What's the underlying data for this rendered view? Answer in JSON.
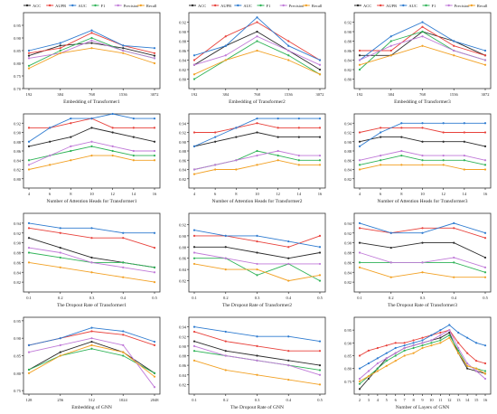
{
  "colors": {
    "ACC": "#2b2b2b",
    "AUPR": "#e8423c",
    "AUC": "#2e7bd0",
    "F1": "#2fb357",
    "Precision": "#c07ad8",
    "Recall": "#f2a124"
  },
  "chart_data": [
    {
      "type": "line",
      "legend": [
        "ACC",
        "AUPR",
        "AUC",
        "F1",
        "Precision",
        "Recall"
      ],
      "legend_position": "top",
      "categories": [
        "192",
        "384",
        "768",
        "1536",
        "3072"
      ],
      "xlabel": "Embedding of Transformer1",
      "ylabel": "",
      "ylim": [
        0.7,
        1.0
      ],
      "yticks": [
        "0.70",
        "0.75",
        "0.80",
        "0.85",
        "0.90",
        "0.95"
      ],
      "series": [
        {
          "name": "ACC",
          "values": [
            0.83,
            0.87,
            0.88,
            0.86,
            0.83
          ]
        },
        {
          "name": "AUPR",
          "values": [
            0.84,
            0.86,
            0.92,
            0.87,
            0.84
          ]
        },
        {
          "name": "AUC",
          "values": [
            0.85,
            0.88,
            0.93,
            0.87,
            0.86
          ]
        },
        {
          "name": "F1",
          "values": [
            0.79,
            0.85,
            0.9,
            0.85,
            0.82
          ]
        },
        {
          "name": "Precision",
          "values": [
            0.82,
            0.84,
            0.89,
            0.85,
            0.82
          ]
        },
        {
          "name": "Recall",
          "values": [
            0.78,
            0.84,
            0.86,
            0.84,
            0.8
          ]
        }
      ]
    },
    {
      "type": "line",
      "legend": [
        "ACC",
        "AUPR",
        "AUC",
        "F1",
        "Precision",
        "Recall"
      ],
      "legend_position": "top",
      "categories": [
        "192",
        "384",
        "768",
        "1536",
        "3072"
      ],
      "xlabel": "Embedding of Transformer2",
      "ylabel": "",
      "ylim": [
        0.78,
        0.94
      ],
      "yticks": [
        "0.80",
        "0.82",
        "0.84",
        "0.86",
        "0.88",
        "0.90",
        "0.92"
      ],
      "series": [
        {
          "name": "ACC",
          "values": [
            0.83,
            0.87,
            0.9,
            0.86,
            0.82
          ]
        },
        {
          "name": "AUPR",
          "values": [
            0.84,
            0.89,
            0.92,
            0.88,
            0.84
          ]
        },
        {
          "name": "AUC",
          "values": [
            0.85,
            0.87,
            0.93,
            0.87,
            0.84
          ]
        },
        {
          "name": "F1",
          "values": [
            0.8,
            0.84,
            0.88,
            0.85,
            0.81
          ]
        },
        {
          "name": "Precision",
          "values": [
            0.83,
            0.85,
            0.89,
            0.86,
            0.83
          ]
        },
        {
          "name": "Recall",
          "values": [
            0.81,
            0.84,
            0.86,
            0.84,
            0.81
          ]
        }
      ]
    },
    {
      "type": "line",
      "legend": [
        "ACC",
        "AUPR",
        "AUC",
        "F1",
        "Precision",
        "Recall"
      ],
      "legend_position": "top",
      "categories": [
        "192",
        "384",
        "768",
        "1536",
        "3072"
      ],
      "xlabel": "Embedding of Transformer3",
      "ylabel": "",
      "ylim": [
        0.78,
        0.94
      ],
      "yticks": [
        "0.80",
        "0.82",
        "0.84",
        "0.86",
        "0.88",
        "0.90",
        "0.92"
      ],
      "series": [
        {
          "name": "ACC",
          "values": [
            0.85,
            0.85,
            0.9,
            0.88,
            0.85
          ]
        },
        {
          "name": "AUPR",
          "values": [
            0.86,
            0.86,
            0.91,
            0.87,
            0.85
          ]
        },
        {
          "name": "AUC",
          "values": [
            0.84,
            0.89,
            0.92,
            0.88,
            0.86
          ]
        },
        {
          "name": "F1",
          "values": [
            0.82,
            0.88,
            0.9,
            0.86,
            0.84
          ]
        },
        {
          "name": "Precision",
          "values": [
            0.84,
            0.87,
            0.89,
            0.86,
            0.84
          ]
        },
        {
          "name": "Recall",
          "values": [
            0.83,
            0.85,
            0.87,
            0.85,
            0.83
          ]
        }
      ]
    },
    {
      "type": "line",
      "categories": [
        "4",
        "6",
        "8",
        "10",
        "12",
        "14",
        "16"
      ],
      "xlabel": "Number of Attention Heads for Transformer1",
      "ylabel": "",
      "ylim": [
        0.78,
        0.94
      ],
      "yticks": [
        "0.80",
        "0.82",
        "0.84",
        "0.86",
        "0.88",
        "0.90",
        "0.92"
      ],
      "series": [
        {
          "name": "ACC",
          "values": [
            0.87,
            0.88,
            0.89,
            0.91,
            0.9,
            0.89,
            0.88
          ]
        },
        {
          "name": "AUPR",
          "values": [
            0.91,
            0.91,
            0.92,
            0.93,
            0.91,
            0.91,
            0.91
          ]
        },
        {
          "name": "AUC",
          "values": [
            0.88,
            0.91,
            0.93,
            0.93,
            0.94,
            0.93,
            0.93
          ]
        },
        {
          "name": "F1",
          "values": [
            0.84,
            0.85,
            0.86,
            0.87,
            0.86,
            0.85,
            0.85
          ]
        },
        {
          "name": "Precision",
          "values": [
            0.83,
            0.85,
            0.87,
            0.88,
            0.87,
            0.86,
            0.86
          ]
        },
        {
          "name": "Recall",
          "values": [
            0.82,
            0.83,
            0.84,
            0.85,
            0.85,
            0.84,
            0.84
          ]
        }
      ]
    },
    {
      "type": "line",
      "categories": [
        "4",
        "6",
        "8",
        "10",
        "12",
        "14",
        "16"
      ],
      "xlabel": "Number of Attention Heads for Transformer2",
      "ylabel": "",
      "ylim": [
        0.8,
        0.96
      ],
      "yticks": [
        "0.82",
        "0.84",
        "0.86",
        "0.88",
        "0.90",
        "0.92",
        "0.94"
      ],
      "series": [
        {
          "name": "ACC",
          "values": [
            0.89,
            0.9,
            0.91,
            0.92,
            0.91,
            0.91,
            0.91
          ]
        },
        {
          "name": "AUPR",
          "values": [
            0.92,
            0.92,
            0.93,
            0.94,
            0.93,
            0.93,
            0.93
          ]
        },
        {
          "name": "AUC",
          "values": [
            0.89,
            0.91,
            0.93,
            0.95,
            0.95,
            0.95,
            0.95
          ]
        },
        {
          "name": "F1",
          "values": [
            0.84,
            0.85,
            0.86,
            0.88,
            0.87,
            0.86,
            0.86
          ]
        },
        {
          "name": "Precision",
          "values": [
            0.84,
            0.85,
            0.86,
            0.87,
            0.88,
            0.87,
            0.87
          ]
        },
        {
          "name": "Recall",
          "values": [
            0.83,
            0.84,
            0.84,
            0.85,
            0.86,
            0.85,
            0.85
          ]
        }
      ]
    },
    {
      "type": "line",
      "categories": [
        "4",
        "6",
        "8",
        "10",
        "12",
        "14",
        "16"
      ],
      "xlabel": "Number of Attention Heads for Transformer3",
      "ylabel": "",
      "ylim": [
        0.8,
        0.96
      ],
      "yticks": [
        "0.82",
        "0.84",
        "0.86",
        "0.88",
        "0.90",
        "0.92",
        "0.94"
      ],
      "series": [
        {
          "name": "ACC",
          "values": [
            0.9,
            0.91,
            0.91,
            0.9,
            0.9,
            0.9,
            0.89
          ]
        },
        {
          "name": "AUPR",
          "values": [
            0.92,
            0.93,
            0.93,
            0.93,
            0.92,
            0.92,
            0.92
          ]
        },
        {
          "name": "AUC",
          "values": [
            0.89,
            0.92,
            0.94,
            0.94,
            0.94,
            0.94,
            0.94
          ]
        },
        {
          "name": "F1",
          "values": [
            0.85,
            0.86,
            0.87,
            0.86,
            0.86,
            0.86,
            0.85
          ]
        },
        {
          "name": "Precision",
          "values": [
            0.86,
            0.87,
            0.88,
            0.87,
            0.87,
            0.87,
            0.86
          ]
        },
        {
          "name": "Recall",
          "values": [
            0.84,
            0.85,
            0.85,
            0.85,
            0.85,
            0.84,
            0.84
          ]
        }
      ]
    },
    {
      "type": "line",
      "categories": [
        "0.1",
        "0.2",
        "0.3",
        "0.4",
        "0.5"
      ],
      "xlabel": "The Dropout Rate of Transformer1",
      "ylabel": "",
      "ylim": [
        0.8,
        0.96
      ],
      "yticks": [
        "0.82",
        "0.84",
        "0.86",
        "0.88",
        "0.90",
        "0.92",
        "0.94"
      ],
      "series": [
        {
          "name": "ACC",
          "values": [
            0.91,
            0.89,
            0.87,
            0.86,
            0.85
          ]
        },
        {
          "name": "AUPR",
          "values": [
            0.93,
            0.92,
            0.91,
            0.91,
            0.89
          ]
        },
        {
          "name": "AUC",
          "values": [
            0.94,
            0.93,
            0.93,
            0.92,
            0.92
          ]
        },
        {
          "name": "F1",
          "values": [
            0.88,
            0.87,
            0.86,
            0.86,
            0.85
          ]
        },
        {
          "name": "Precision",
          "values": [
            0.89,
            0.88,
            0.86,
            0.85,
            0.84
          ]
        },
        {
          "name": "Recall",
          "values": [
            0.86,
            0.85,
            0.84,
            0.83,
            0.82
          ]
        }
      ]
    },
    {
      "type": "line",
      "categories": [
        "0.1",
        "0.2",
        "0.3",
        "0.4",
        "0.5"
      ],
      "xlabel": "The Dropout Rate of Transformer2",
      "ylabel": "",
      "ylim": [
        0.8,
        0.94
      ],
      "yticks": [
        "0.82",
        "0.84",
        "0.86",
        "0.88",
        "0.90",
        "0.92"
      ],
      "series": [
        {
          "name": "ACC",
          "values": [
            0.88,
            0.88,
            0.87,
            0.86,
            0.87
          ]
        },
        {
          "name": "AUPR",
          "values": [
            0.9,
            0.9,
            0.89,
            0.88,
            0.9
          ]
        },
        {
          "name": "AUC",
          "values": [
            0.91,
            0.9,
            0.9,
            0.89,
            0.88
          ]
        },
        {
          "name": "F1",
          "values": [
            0.86,
            0.86,
            0.83,
            0.85,
            0.82
          ]
        },
        {
          "name": "Precision",
          "values": [
            0.87,
            0.86,
            0.85,
            0.85,
            0.85
          ]
        },
        {
          "name": "Recall",
          "values": [
            0.85,
            0.84,
            0.84,
            0.82,
            0.83
          ]
        }
      ]
    },
    {
      "type": "line",
      "categories": [
        "0.1",
        "0.2",
        "0.3",
        "0.4",
        "0.5"
      ],
      "xlabel": "The Dropout Rate of Transformer3",
      "ylabel": "",
      "ylim": [
        0.8,
        0.96
      ],
      "yticks": [
        "0.82",
        "0.84",
        "0.86",
        "0.88",
        "0.90",
        "0.92",
        "0.94"
      ],
      "series": [
        {
          "name": "ACC",
          "values": [
            0.9,
            0.89,
            0.9,
            0.9,
            0.87
          ]
        },
        {
          "name": "AUPR",
          "values": [
            0.93,
            0.92,
            0.93,
            0.93,
            0.91
          ]
        },
        {
          "name": "AUC",
          "values": [
            0.94,
            0.92,
            0.92,
            0.94,
            0.92
          ]
        },
        {
          "name": "F1",
          "values": [
            0.86,
            0.86,
            0.86,
            0.86,
            0.84
          ]
        },
        {
          "name": "Precision",
          "values": [
            0.88,
            0.86,
            0.86,
            0.87,
            0.85
          ]
        },
        {
          "name": "Recall",
          "values": [
            0.85,
            0.83,
            0.84,
            0.83,
            0.83
          ]
        }
      ]
    },
    {
      "type": "line",
      "categories": [
        "128",
        "256",
        "512",
        "1024",
        "2048"
      ],
      "xlabel": "Embedding of GNN",
      "ylabel": "",
      "ylim": [
        0.74,
        0.96
      ],
      "yticks": [
        "0.75",
        "0.80",
        "0.85",
        "0.90",
        "0.95"
      ],
      "series": [
        {
          "name": "ACC",
          "values": [
            0.81,
            0.86,
            0.89,
            0.86,
            0.8
          ]
        },
        {
          "name": "AUPR",
          "values": [
            0.88,
            0.9,
            0.92,
            0.91,
            0.88
          ]
        },
        {
          "name": "AUC",
          "values": [
            0.88,
            0.9,
            0.93,
            0.92,
            0.89
          ]
        },
        {
          "name": "F1",
          "values": [
            0.81,
            0.85,
            0.87,
            0.85,
            0.8
          ]
        },
        {
          "name": "Precision",
          "values": [
            0.86,
            0.88,
            0.9,
            0.88,
            0.76
          ]
        },
        {
          "name": "Recall",
          "values": [
            0.8,
            0.85,
            0.88,
            0.86,
            0.79
          ]
        }
      ]
    },
    {
      "type": "line",
      "categories": [
        "0.1",
        "0.2",
        "0.3",
        "0.4",
        "0.5"
      ],
      "xlabel": "The Dropout Rate of GNN",
      "ylabel": "",
      "ylim": [
        0.8,
        0.96
      ],
      "yticks": [
        "0.82",
        "0.84",
        "0.86",
        "0.88",
        "0.90",
        "0.92",
        "0.94"
      ],
      "series": [
        {
          "name": "ACC",
          "values": [
            0.91,
            0.89,
            0.88,
            0.87,
            0.86
          ]
        },
        {
          "name": "AUPR",
          "values": [
            0.93,
            0.91,
            0.9,
            0.89,
            0.89
          ]
        },
        {
          "name": "AUC",
          "values": [
            0.94,
            0.93,
            0.92,
            0.92,
            0.91
          ]
        },
        {
          "name": "F1",
          "values": [
            0.89,
            0.88,
            0.87,
            0.86,
            0.85
          ]
        },
        {
          "name": "Precision",
          "values": [
            0.9,
            0.88,
            0.87,
            0.86,
            0.84
          ]
        },
        {
          "name": "Recall",
          "values": [
            0.87,
            0.85,
            0.84,
            0.83,
            0.82
          ]
        }
      ]
    },
    {
      "type": "line",
      "categories": [
        "2",
        "3",
        "4",
        "5",
        "6",
        "7",
        "8",
        "9",
        "10",
        "11",
        "12",
        "13",
        "14",
        "15",
        "16"
      ],
      "xlabel": "Number of Layers of GNN",
      "ylabel": "",
      "ylim": [
        0.7,
        1.0
      ],
      "yticks": [
        "0.75",
        "0.80",
        "0.85",
        "0.90",
        "0.95"
      ],
      "series": [
        {
          "name": "ACC",
          "values": [
            0.72,
            0.76,
            0.8,
            0.84,
            0.86,
            0.88,
            0.89,
            0.9,
            0.91,
            0.92,
            0.94,
            0.86,
            0.8,
            0.79,
            0.78
          ]
        },
        {
          "name": "AUPR",
          "values": [
            0.85,
            0.87,
            0.88,
            0.89,
            0.9,
            0.9,
            0.91,
            0.92,
            0.93,
            0.94,
            0.95,
            0.9,
            0.86,
            0.83,
            0.82
          ]
        },
        {
          "name": "AUC",
          "values": [
            0.8,
            0.82,
            0.84,
            0.86,
            0.88,
            0.89,
            0.9,
            0.91,
            0.93,
            0.95,
            0.97,
            0.94,
            0.92,
            0.9,
            0.89
          ]
        },
        {
          "name": "F1",
          "values": [
            0.74,
            0.77,
            0.8,
            0.83,
            0.85,
            0.87,
            0.88,
            0.89,
            0.9,
            0.91,
            0.93,
            0.87,
            0.81,
            0.8,
            0.79
          ]
        },
        {
          "name": "Precision",
          "values": [
            0.76,
            0.79,
            0.82,
            0.84,
            0.86,
            0.88,
            0.89,
            0.9,
            0.91,
            0.93,
            0.95,
            0.88,
            0.82,
            0.79,
            0.76
          ]
        },
        {
          "name": "Recall",
          "values": [
            0.75,
            0.77,
            0.79,
            0.81,
            0.83,
            0.85,
            0.86,
            0.88,
            0.89,
            0.9,
            0.92,
            0.86,
            0.81,
            0.8,
            0.78
          ]
        }
      ]
    }
  ]
}
